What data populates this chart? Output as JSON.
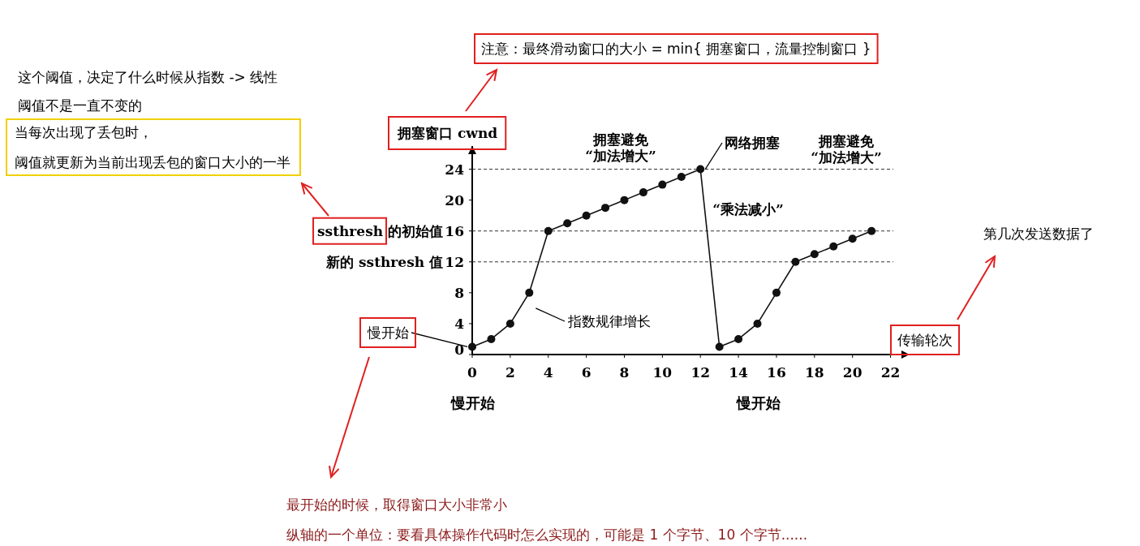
{
  "chart_data": {
    "type": "line",
    "ylabel": "拥塞窗口 cwnd",
    "xlabel": "传输轮次",
    "x": [
      0,
      1,
      2,
      3,
      4,
      5,
      6,
      7,
      8,
      9,
      10,
      11,
      12,
      13,
      14,
      15,
      16,
      17,
      18,
      19,
      20,
      21
    ],
    "series": [
      {
        "color": "#111111",
        "values": [
          1,
          2,
          4,
          8,
          16,
          17,
          18,
          19,
          20,
          21,
          22,
          23,
          24,
          1,
          2,
          4,
          8,
          12,
          13,
          14,
          15,
          16
        ]
      }
    ],
    "xlim": [
      0,
      23
    ],
    "ylim": [
      0,
      27
    ],
    "xticks": [
      0,
      2,
      4,
      6,
      8,
      10,
      12,
      14,
      16,
      18,
      20,
      22
    ],
    "yticks": [
      0,
      4,
      8,
      12,
      16,
      20,
      24
    ],
    "marker": "circle",
    "line_style": "solid",
    "grid": false,
    "ref_lines": [
      {
        "axis": "y",
        "value": 24,
        "label": null,
        "line_style": "dashed"
      },
      {
        "axis": "y",
        "value": 16,
        "label": "ssthresh 的初始值",
        "line_style": "dashed"
      },
      {
        "axis": "y",
        "value": 12,
        "label": "新的 ssthresh 值",
        "line_style": "dashed"
      }
    ],
    "annotations": [
      "注意：最终滑动窗口的大小 = min{ 拥塞窗口，流量控制窗口 }",
      "这个阈值，决定了什么时候从指数 -> 线性",
      "阈值不是一直不变的",
      "当每次出现了丢包时，",
      "阈值就更新为当前出现丢包的窗口大小的一半",
      "拥塞避免\n“加法增大”",
      "拥塞避免\n“加法增大”",
      "“乘法减小”",
      "慢开始",
      "慢开始",
      "第几次发送数据了",
      "最开始的时候，取得窗口大小非常小",
      "纵轴的一个单位：要看具体操作代码时怎么实现的，可能是 1 个字节、10 个字节......",
      {
        "text": "网络拥塞",
        "x": 12,
        "y": 24
      },
      {
        "text": "慢开始",
        "x": 0,
        "y": 1
      },
      "指数规律增长"
    ]
  }
}
